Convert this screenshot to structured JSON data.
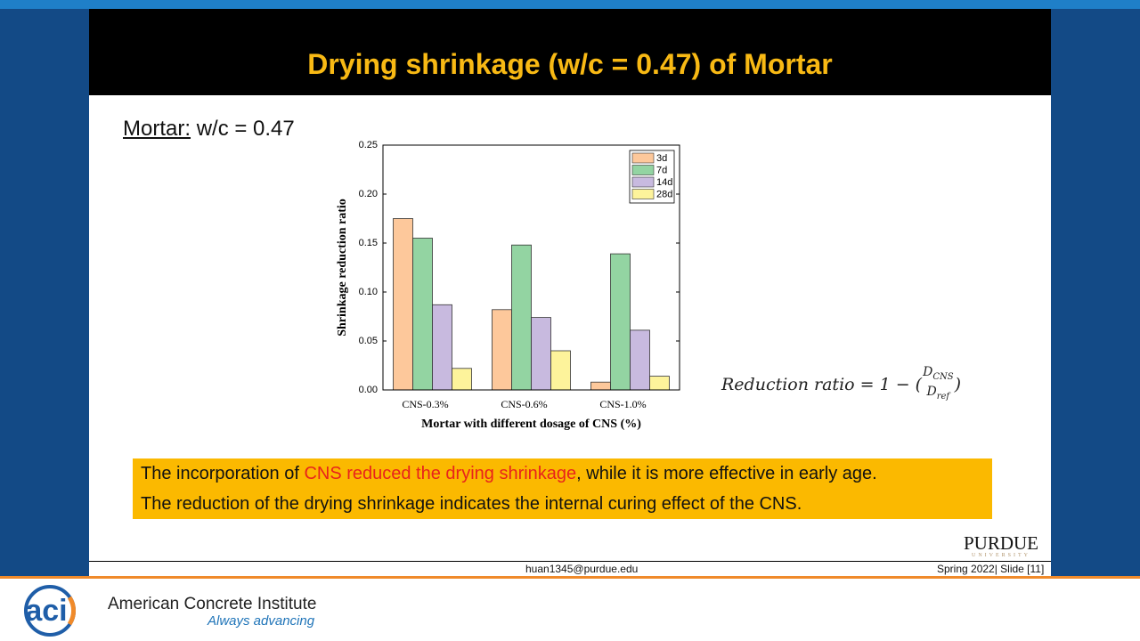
{
  "slide": {
    "title": "Drying shrinkage (w/c = 0.47) of Mortar",
    "mortar_label": "Mortar:",
    "mortar_value": "w/c = 0.47",
    "formula": {
      "lhs": "Reduction ratio = 1 − (",
      "numerator": "D",
      "numerator_sub": "CNS",
      "denominator": "D",
      "denominator_sub": "ref",
      "close": ")"
    },
    "highlight": {
      "line1_start": "The incorporation of ",
      "line1_red": "CNS reduced the drying shrinkage",
      "line1_end": ", while it is more effective in early age.",
      "line2": "The reduction of the drying shrinkage indicates the internal curing effect of the CNS."
    },
    "logo": {
      "name": "PURDUE",
      "sub": "UNIVERSITY"
    },
    "footer": {
      "email": "huan1345@purdue.edu",
      "slide": "Spring 2022| Slide [11]"
    }
  },
  "branding": {
    "logo": "aci",
    "name": "American Concrete Institute",
    "tagline": "Always advancing"
  },
  "chart_data": {
    "type": "bar",
    "x_label": "Mortar with different dosage of  CNS (%)",
    "y_label": "Shrinkage reduction ratio",
    "categories": [
      "CNS-0.3%",
      "CNS-0.6%",
      "CNS-1.0%"
    ],
    "series": [
      {
        "name": "3d",
        "color": "#fdc89b",
        "values": [
          0.175,
          0.082,
          0.008
        ]
      },
      {
        "name": "7d",
        "color": "#93d4a2",
        "values": [
          0.155,
          0.148,
          0.139
        ]
      },
      {
        "name": "14d",
        "color": "#c8badf",
        "values": [
          0.087,
          0.074,
          0.061
        ]
      },
      {
        "name": "28d",
        "color": "#fdf39b",
        "values": [
          0.022,
          0.04,
          0.014
        ]
      }
    ],
    "ylim": [
      0,
      0.25
    ],
    "yticks": [
      {
        "value": 0,
        "label": "0.00"
      },
      {
        "value": 0.05,
        "label": "0.05"
      },
      {
        "value": 0.1,
        "label": "0.10"
      },
      {
        "value": 0.15,
        "label": "0.15"
      },
      {
        "value": 0.2,
        "label": "0.20"
      },
      {
        "value": 0.25,
        "label": "0.25"
      }
    ],
    "legend": "upper right"
  }
}
